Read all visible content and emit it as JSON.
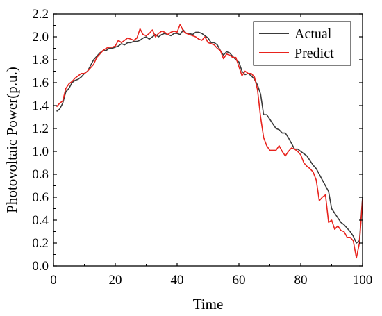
{
  "chart_data": {
    "type": "line",
    "xlabel": "Time",
    "ylabel": "Photovoltaic Power(p.u.)",
    "xlim": [
      0,
      100
    ],
    "ylim": [
      0.0,
      2.2
    ],
    "x_ticks": [
      "0",
      "20",
      "40",
      "60",
      "80",
      "100"
    ],
    "y_ticks": [
      "0.0",
      "0.2",
      "0.4",
      "0.6",
      "0.8",
      "1.0",
      "1.2",
      "1.4",
      "1.6",
      "1.8",
      "2.0",
      "2.2"
    ],
    "grid": false,
    "legend_position": "top-right",
    "series": [
      {
        "name": "Actual",
        "color": "#3a3a3a",
        "x": [
          1,
          2,
          3,
          4,
          5,
          6,
          7,
          8,
          9,
          10,
          11,
          12,
          13,
          14,
          15,
          16,
          17,
          18,
          19,
          20,
          21,
          22,
          23,
          24,
          25,
          26,
          27,
          28,
          29,
          30,
          31,
          32,
          33,
          34,
          35,
          36,
          37,
          38,
          39,
          40,
          41,
          42,
          43,
          44,
          45,
          46,
          47,
          48,
          49,
          50,
          51,
          52,
          53,
          54,
          55,
          56,
          57,
          58,
          59,
          60,
          61,
          62,
          63,
          64,
          65,
          66,
          67,
          68,
          69,
          70,
          71,
          72,
          73,
          74,
          75,
          76,
          77,
          78,
          79,
          80,
          81,
          82,
          83,
          84,
          85,
          86,
          87,
          88,
          89,
          90,
          91,
          92,
          93,
          94,
          95,
          96,
          97,
          98,
          99,
          100
        ],
        "values": [
          1.35,
          1.37,
          1.42,
          1.52,
          1.55,
          1.6,
          1.62,
          1.63,
          1.65,
          1.68,
          1.7,
          1.75,
          1.8,
          1.83,
          1.86,
          1.88,
          1.88,
          1.9,
          1.9,
          1.91,
          1.92,
          1.94,
          1.93,
          1.95,
          1.95,
          1.96,
          1.96,
          1.97,
          1.99,
          2.0,
          1.98,
          2.0,
          2.02,
          2.0,
          2.02,
          2.03,
          2.02,
          2.01,
          2.03,
          2.03,
          2.02,
          2.06,
          2.03,
          2.03,
          2.02,
          2.04,
          2.04,
          2.03,
          2.01,
          1.99,
          1.95,
          1.95,
          1.93,
          1.88,
          1.84,
          1.87,
          1.86,
          1.83,
          1.8,
          1.78,
          1.7,
          1.67,
          1.68,
          1.66,
          1.63,
          1.58,
          1.5,
          1.32,
          1.32,
          1.28,
          1.24,
          1.2,
          1.19,
          1.16,
          1.16,
          1.12,
          1.07,
          1.02,
          1.02,
          1.0,
          0.98,
          0.96,
          0.92,
          0.88,
          0.85,
          0.8,
          0.75,
          0.7,
          0.65,
          0.5,
          0.46,
          0.42,
          0.38,
          0.36,
          0.33,
          0.3,
          0.26,
          0.2,
          0.22,
          0.6
        ]
      },
      {
        "name": "Predict",
        "color": "#e8231d",
        "x": [
          1,
          2,
          3,
          4,
          5,
          6,
          7,
          8,
          9,
          10,
          11,
          12,
          13,
          14,
          15,
          16,
          17,
          18,
          19,
          20,
          21,
          22,
          23,
          24,
          25,
          26,
          27,
          28,
          29,
          30,
          31,
          32,
          33,
          34,
          35,
          36,
          37,
          38,
          39,
          40,
          41,
          42,
          43,
          44,
          45,
          46,
          47,
          48,
          49,
          50,
          51,
          52,
          53,
          54,
          55,
          56,
          57,
          58,
          59,
          60,
          61,
          62,
          63,
          64,
          65,
          66,
          67,
          68,
          69,
          70,
          71,
          72,
          73,
          74,
          75,
          76,
          77,
          78,
          79,
          80,
          81,
          82,
          83,
          84,
          85,
          86,
          87,
          88,
          89,
          90,
          91,
          92,
          93,
          94,
          95,
          96,
          97,
          98,
          99,
          100
        ],
        "values": [
          1.39,
          1.42,
          1.44,
          1.55,
          1.59,
          1.61,
          1.64,
          1.66,
          1.68,
          1.68,
          1.7,
          1.73,
          1.76,
          1.82,
          1.85,
          1.88,
          1.9,
          1.91,
          1.91,
          1.92,
          1.97,
          1.95,
          1.97,
          1.99,
          1.98,
          1.97,
          1.99,
          2.07,
          2.02,
          2.01,
          2.03,
          2.06,
          2.0,
          2.03,
          2.05,
          2.04,
          2.02,
          2.04,
          2.05,
          2.04,
          2.11,
          2.05,
          2.03,
          2.02,
          2.01,
          2.0,
          1.98,
          1.97,
          2.0,
          1.95,
          1.94,
          1.93,
          1.9,
          1.88,
          1.81,
          1.85,
          1.84,
          1.82,
          1.82,
          1.74,
          1.66,
          1.7,
          1.68,
          1.68,
          1.65,
          1.54,
          1.3,
          1.12,
          1.05,
          1.01,
          1.01,
          1.01,
          1.05,
          1.0,
          0.96,
          1.0,
          1.03,
          1.02,
          1.0,
          0.97,
          0.9,
          0.87,
          0.85,
          0.82,
          0.75,
          0.57,
          0.6,
          0.62,
          0.38,
          0.4,
          0.32,
          0.35,
          0.31,
          0.3,
          0.25,
          0.25,
          0.22,
          0.07,
          0.2,
          0.58
        ]
      }
    ]
  }
}
